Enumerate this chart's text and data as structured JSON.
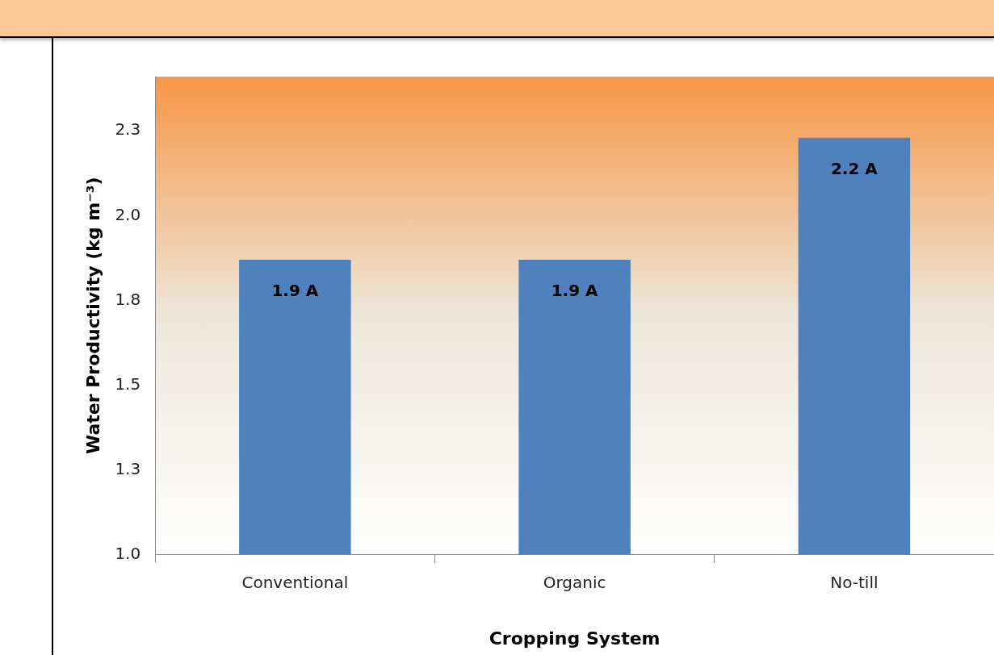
{
  "chart_data": {
    "type": "bar",
    "xlabel": "Cropping System",
    "ylabel": "Water Productivity (kg m⁻³)",
    "categories": [
      "Conventional",
      "Organic",
      "No-till"
    ],
    "values": [
      1.87,
      1.87,
      2.23
    ],
    "color": "#4f81bd",
    "value_labels": [
      "1.9 A",
      "1.9 A",
      "2.2 A"
    ],
    "ylim": [
      1.0,
      2.41
    ],
    "yticks": [
      {
        "value": 1.0,
        "label": "1.0"
      },
      {
        "value": 1.25,
        "label": "1.3"
      },
      {
        "value": 1.5,
        "label": "1.5"
      },
      {
        "value": 1.75,
        "label": "1.8"
      },
      {
        "value": 2.0,
        "label": "2.0"
      },
      {
        "value": 2.25,
        "label": "2.3"
      }
    ],
    "grid": false,
    "legend": false
  }
}
